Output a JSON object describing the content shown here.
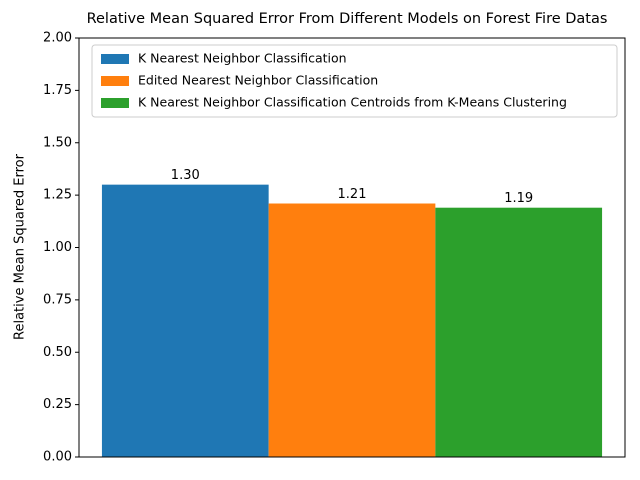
{
  "chart_data": {
    "type": "bar",
    "title": "Relative Mean Squared Error From Different Models on Forest Fire Datas",
    "y_label": "Relative Mean Squared Error",
    "categories": [
      null
    ],
    "series": [
      {
        "name": "K Nearest Neighbor Classification",
        "color": "#1f77b4",
        "values": [
          1.3
        ],
        "value_labels": [
          "1.30"
        ]
      },
      {
        "name": "Edited Nearest Neighbor Classification",
        "color": "#ff7f0e",
        "values": [
          1.21
        ],
        "value_labels": [
          "1.21"
        ]
      },
      {
        "name": "K Nearest Neighbor Classification Centroids from K-Means Clustering",
        "color": "#2ca02c",
        "values": [
          1.19
        ],
        "value_labels": [
          "1.19"
        ]
      }
    ],
    "ylim": [
      0,
      2
    ],
    "yticks": [
      {
        "value": 0,
        "label": "0.00"
      },
      {
        "value": 0.25,
        "label": "0.25"
      },
      {
        "value": 0.5,
        "label": "0.50"
      },
      {
        "value": 0.75,
        "label": "0.75"
      },
      {
        "value": 1,
        "label": "1.00"
      },
      {
        "value": 1.25,
        "label": "1.25"
      },
      {
        "value": 1.5,
        "label": "1.50"
      },
      {
        "value": 1.75,
        "label": "1.75"
      },
      {
        "value": 2,
        "label": "2.00"
      }
    ],
    "legend": "upper left"
  }
}
